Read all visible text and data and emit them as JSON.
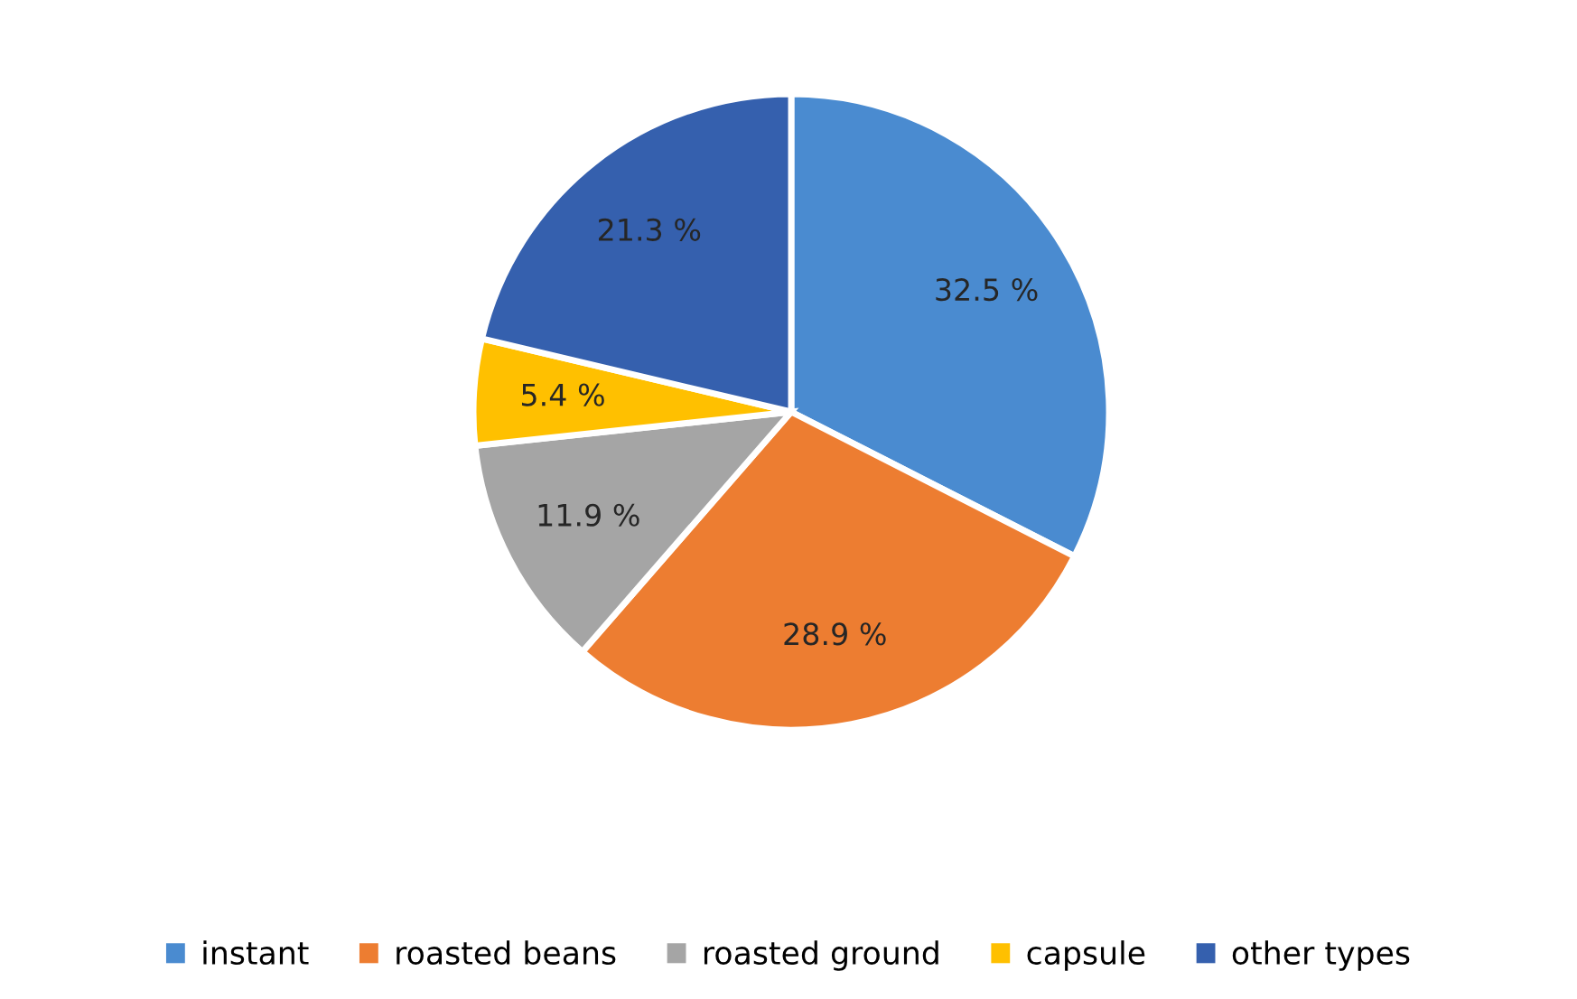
{
  "chart_data": {
    "type": "pie",
    "categories": [
      "instant",
      "roasted beans",
      "roasted ground",
      "capsule",
      "other types"
    ],
    "values": [
      32.5,
      28.9,
      11.9,
      5.4,
      21.3
    ],
    "value_labels": [
      "32.5 %",
      "28.9 %",
      "11.9 %",
      "5.4 %",
      "21.3 %"
    ],
    "colors": [
      "#4a8bd0",
      "#ed7d31",
      "#a5a5a5",
      "#ffc000",
      "#3560ae"
    ],
    "legend": "bottom"
  }
}
